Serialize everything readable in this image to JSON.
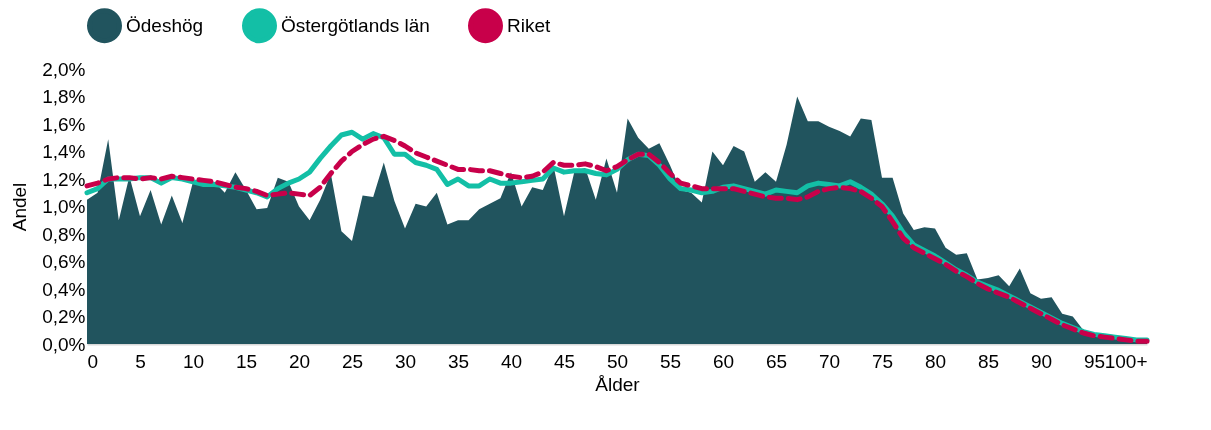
{
  "chart_data": {
    "type": "area",
    "xlabel": "Ålder",
    "ylabel": "Andel",
    "legend": "top",
    "grid": false,
    "xlim": [
      0,
      100
    ],
    "xticks": [
      0,
      5,
      10,
      15,
      20,
      25,
      30,
      35,
      40,
      45,
      50,
      55,
      60,
      65,
      70,
      75,
      80,
      85,
      90,
      95,
      {
        "value": 100,
        "label": "100+"
      }
    ],
    "ylim": [
      0,
      2
    ],
    "yticks": [
      {
        "value": 0,
        "label": "0,0%"
      },
      {
        "value": 0.2,
        "label": "0,2%"
      },
      {
        "value": 0.4,
        "label": "0,4%"
      },
      {
        "value": 0.6,
        "label": "0,6%"
      },
      {
        "value": 0.8,
        "label": "0,8%"
      },
      {
        "value": 1,
        "label": "1,0%"
      },
      {
        "value": 1.2,
        "label": "1,2%"
      },
      {
        "value": 1.4,
        "label": "1,4%"
      },
      {
        "value": 1.6,
        "label": "1,6%"
      },
      {
        "value": 1.8,
        "label": "1,8%"
      },
      {
        "value": 2,
        "label": "2,0%"
      }
    ],
    "x": [
      0,
      1,
      2,
      3,
      4,
      5,
      6,
      7,
      8,
      9,
      10,
      11,
      12,
      13,
      14,
      15,
      16,
      17,
      18,
      19,
      20,
      21,
      22,
      23,
      24,
      25,
      26,
      27,
      28,
      29,
      30,
      31,
      32,
      33,
      34,
      35,
      36,
      37,
      38,
      39,
      40,
      41,
      42,
      43,
      44,
      45,
      46,
      47,
      48,
      49,
      50,
      51,
      52,
      53,
      54,
      55,
      56,
      57,
      58,
      59,
      60,
      61,
      62,
      63,
      64,
      65,
      66,
      67,
      68,
      69,
      70,
      71,
      72,
      73,
      74,
      75,
      76,
      77,
      78,
      79,
      80,
      81,
      82,
      83,
      84,
      85,
      86,
      87,
      88,
      89,
      90,
      91,
      92,
      93,
      94,
      95,
      96,
      97,
      98,
      99,
      100
    ],
    "series": [
      {
        "name": "Ödeshög",
        "type": "area",
        "color": "#21545e",
        "values": [
          1.05,
          1.1,
          1.49,
          0.9,
          1.22,
          0.93,
          1.12,
          0.87,
          1.08,
          0.88,
          1.18,
          1.18,
          1.18,
          1.1,
          1.25,
          1.12,
          0.98,
          0.99,
          1.21,
          1.18,
          1.0,
          0.9,
          1.05,
          1.24,
          0.82,
          0.75,
          1.08,
          1.07,
          1.32,
          1.04,
          0.84,
          1.02,
          1.0,
          1.1,
          0.87,
          0.9,
          0.9,
          0.98,
          1.02,
          1.06,
          1.25,
          1.0,
          1.14,
          1.12,
          1.3,
          0.93,
          1.26,
          1.28,
          1.05,
          1.35,
          1.1,
          1.64,
          1.5,
          1.42,
          1.46,
          1.3,
          1.12,
          1.1,
          1.03,
          1.4,
          1.3,
          1.44,
          1.4,
          1.18,
          1.25,
          1.18,
          1.45,
          1.8,
          1.62,
          1.62,
          1.58,
          1.55,
          1.51,
          1.64,
          1.63,
          1.21,
          1.21,
          0.95,
          0.83,
          0.85,
          0.84,
          0.7,
          0.65,
          0.66,
          0.47,
          0.48,
          0.5,
          0.42,
          0.55,
          0.37,
          0.33,
          0.34,
          0.22,
          0.2,
          0.1,
          0.08,
          0.06,
          0.05,
          0.04,
          0.03,
          0.03
        ]
      },
      {
        "name": "Östergötlands län",
        "type": "line",
        "line_style": "solid",
        "color": "#13bfa6",
        "values": [
          1.1,
          1.13,
          1.2,
          1.2,
          1.2,
          1.21,
          1.21,
          1.17,
          1.21,
          1.2,
          1.18,
          1.16,
          1.16,
          1.15,
          1.14,
          1.12,
          1.1,
          1.07,
          1.13,
          1.17,
          1.2,
          1.25,
          1.35,
          1.44,
          1.52,
          1.54,
          1.49,
          1.53,
          1.5,
          1.38,
          1.38,
          1.32,
          1.3,
          1.27,
          1.16,
          1.2,
          1.15,
          1.15,
          1.2,
          1.17,
          1.17,
          1.18,
          1.19,
          1.2,
          1.28,
          1.25,
          1.26,
          1.26,
          1.24,
          1.23,
          1.27,
          1.34,
          1.38,
          1.37,
          1.3,
          1.2,
          1.13,
          1.12,
          1.1,
          1.11,
          1.14,
          1.15,
          1.13,
          1.11,
          1.09,
          1.12,
          1.11,
          1.1,
          1.15,
          1.17,
          1.16,
          1.15,
          1.18,
          1.14,
          1.09,
          1.02,
          0.93,
          0.81,
          0.72,
          0.68,
          0.64,
          0.59,
          0.54,
          0.5,
          0.45,
          0.42,
          0.39,
          0.35,
          0.31,
          0.27,
          0.23,
          0.19,
          0.15,
          0.12,
          0.09,
          0.07,
          0.06,
          0.05,
          0.04,
          0.03,
          0.03
        ]
      },
      {
        "name": "Riket",
        "type": "line",
        "line_style": "dashed",
        "color": "#c8004a",
        "values": [
          1.15,
          1.17,
          1.2,
          1.21,
          1.21,
          1.2,
          1.21,
          1.2,
          1.22,
          1.21,
          1.2,
          1.19,
          1.18,
          1.16,
          1.14,
          1.13,
          1.11,
          1.08,
          1.09,
          1.1,
          1.09,
          1.08,
          1.14,
          1.24,
          1.33,
          1.4,
          1.45,
          1.49,
          1.51,
          1.48,
          1.44,
          1.39,
          1.36,
          1.33,
          1.3,
          1.27,
          1.27,
          1.26,
          1.26,
          1.24,
          1.22,
          1.21,
          1.22,
          1.25,
          1.32,
          1.3,
          1.3,
          1.31,
          1.29,
          1.26,
          1.29,
          1.34,
          1.38,
          1.38,
          1.32,
          1.24,
          1.17,
          1.15,
          1.13,
          1.13,
          1.13,
          1.13,
          1.11,
          1.09,
          1.07,
          1.06,
          1.06,
          1.05,
          1.07,
          1.11,
          1.13,
          1.14,
          1.13,
          1.11,
          1.06,
          1.0,
          0.89,
          0.77,
          0.7,
          0.66,
          0.62,
          0.58,
          0.53,
          0.49,
          0.44,
          0.4,
          0.37,
          0.34,
          0.3,
          0.26,
          0.22,
          0.18,
          0.14,
          0.11,
          0.08,
          0.06,
          0.05,
          0.04,
          0.03,
          0.02,
          0.02
        ]
      }
    ]
  }
}
